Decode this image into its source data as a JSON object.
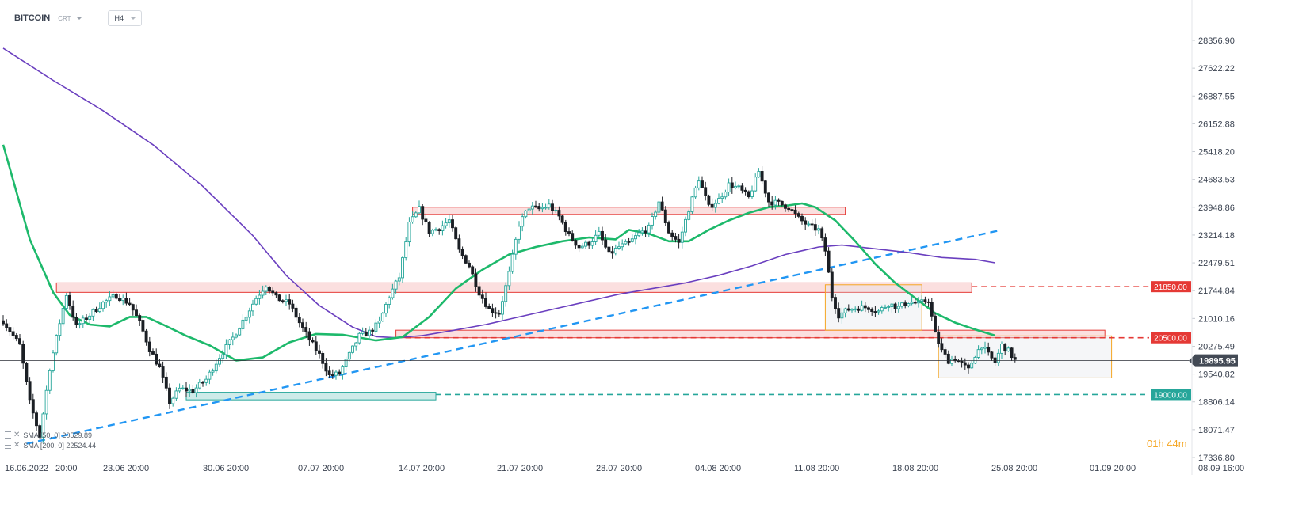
{
  "header": {
    "symbol": "BITCOIN",
    "type": "CRT",
    "timeframe": "H4"
  },
  "legend": {
    "sma50": "SMA [50, 0] 20529.89",
    "sma200": "SMA [200, 0] 22524.44"
  },
  "timer": {
    "hours": "01",
    "h": "h",
    "minutes": "44",
    "m": "m"
  },
  "colors": {
    "up": "#26a69a",
    "down": "#1b1f24",
    "sma50": "#1db96b",
    "sma200": "#6a3fbf",
    "resistance": "#e53935",
    "support": "#26a69a",
    "trendline": "#2196f3",
    "range_box": "#f5a623"
  },
  "chart_data": {
    "type": "candlestick",
    "instrument": "BITCOIN",
    "timeframe": "H4",
    "x_labels": [
      "16.06.2022",
      "20:00",
      "23.06  20:00",
      "30.06  20:00",
      "07.07  20:00",
      "14.07  20:00",
      "21.07  20:00",
      "28.07  20:00",
      "04.08  20:00",
      "11.08  20:00",
      "18.08  20:00",
      "25.08  20:00",
      "01.09  20:00",
      "08.09  16:00"
    ],
    "y_ticks": [
      "28356.90",
      "27622.22",
      "26887.55",
      "26152.88",
      "25418.20",
      "24683.53",
      "23948.86",
      "23214.18",
      "22479.51",
      "21744.84",
      "21010.16",
      "20275.49",
      "19540.82",
      "18806.14",
      "18071.47",
      "17336.80"
    ],
    "ylim": [
      17336.8,
      28356.9
    ],
    "current_price": "19895.95",
    "levels": [
      {
        "label": "21850.00",
        "value": 21850,
        "kind": "resistance"
      },
      {
        "label": "20500.00",
        "value": 20500,
        "kind": "resistance"
      },
      {
        "label": "19000.00",
        "value": 19000,
        "kind": "support"
      }
    ],
    "price_path": [
      [
        0,
        20950
      ],
      [
        5,
        20300
      ],
      [
        8,
        18800
      ],
      [
        11,
        17900
      ],
      [
        14,
        19700
      ],
      [
        17,
        20900
      ],
      [
        19,
        21650
      ],
      [
        22,
        20800
      ],
      [
        26,
        21100
      ],
      [
        30,
        21420
      ],
      [
        34,
        21620
      ],
      [
        38,
        21400
      ],
      [
        41,
        20900
      ],
      [
        44,
        20200
      ],
      [
        47,
        19700
      ],
      [
        50,
        18800
      ],
      [
        53,
        19150
      ],
      [
        57,
        19100
      ],
      [
        61,
        19400
      ],
      [
        65,
        20000
      ],
      [
        69,
        20500
      ],
      [
        73,
        21100
      ],
      [
        76,
        21550
      ],
      [
        79,
        21900
      ],
      [
        82,
        21550
      ],
      [
        86,
        21400
      ],
      [
        89,
        20900
      ],
      [
        92,
        20450
      ],
      [
        95,
        20050
      ],
      [
        98,
        19500
      ],
      [
        101,
        19550
      ],
      [
        104,
        20050
      ],
      [
        107,
        20550
      ],
      [
        110,
        20650
      ],
      [
        113,
        20900
      ],
      [
        116,
        21600
      ],
      [
        119,
        22100
      ],
      [
        122,
        23500
      ],
      [
        125,
        23900
      ],
      [
        128,
        23300
      ],
      [
        131,
        23400
      ],
      [
        134,
        23600
      ],
      [
        137,
        22800
      ],
      [
        140,
        22400
      ],
      [
        143,
        21700
      ],
      [
        146,
        21250
      ],
      [
        149,
        21150
      ],
      [
        152,
        22200
      ],
      [
        155,
        23500
      ],
      [
        158,
        23950
      ],
      [
        161,
        23900
      ],
      [
        164,
        24000
      ],
      [
        167,
        23700
      ],
      [
        170,
        23200
      ],
      [
        173,
        22900
      ],
      [
        176,
        23000
      ],
      [
        179,
        23250
      ],
      [
        182,
        22700
      ],
      [
        185,
        22900
      ],
      [
        188,
        23000
      ],
      [
        191,
        23250
      ],
      [
        194,
        23400
      ],
      [
        197,
        24100
      ],
      [
        200,
        23300
      ],
      [
        203,
        23000
      ],
      [
        206,
        23900
      ],
      [
        209,
        24700
      ],
      [
        212,
        23950
      ],
      [
        215,
        24150
      ],
      [
        218,
        24550
      ],
      [
        221,
        24450
      ],
      [
        224,
        24200
      ],
      [
        227,
        24900
      ],
      [
        230,
        24100
      ],
      [
        233,
        24050
      ],
      [
        236,
        23950
      ],
      [
        239,
        23650
      ],
      [
        242,
        23450
      ],
      [
        245,
        23350
      ],
      [
        247,
        22800
      ],
      [
        249,
        21600
      ],
      [
        251,
        21100
      ],
      [
        254,
        21250
      ],
      [
        257,
        21300
      ],
      [
        260,
        21300
      ],
      [
        263,
        21200
      ],
      [
        266,
        21400
      ],
      [
        269,
        21300
      ],
      [
        272,
        21450
      ],
      [
        275,
        21400
      ],
      [
        278,
        21500
      ],
      [
        280,
        20600
      ],
      [
        282,
        20150
      ],
      [
        284,
        19900
      ],
      [
        286,
        19950
      ],
      [
        288,
        19800
      ],
      [
        290,
        19650
      ],
      [
        292,
        20050
      ],
      [
        294,
        20300
      ],
      [
        296,
        20050
      ],
      [
        298,
        19850
      ],
      [
        300,
        20300
      ],
      [
        302,
        20150
      ],
      [
        304,
        19900
      ]
    ],
    "sma50_path": [
      [
        0,
        25600
      ],
      [
        8,
        23100
      ],
      [
        15,
        21700
      ],
      [
        20,
        21100
      ],
      [
        26,
        20850
      ],
      [
        32,
        20800
      ],
      [
        38,
        21050
      ],
      [
        43,
        21050
      ],
      [
        48,
        20850
      ],
      [
        55,
        20550
      ],
      [
        62,
        20300
      ],
      [
        70,
        19900
      ],
      [
        78,
        19980
      ],
      [
        86,
        20380
      ],
      [
        94,
        20600
      ],
      [
        102,
        20580
      ],
      [
        112,
        20430
      ],
      [
        120,
        20520
      ],
      [
        128,
        21050
      ],
      [
        136,
        21800
      ],
      [
        144,
        22300
      ],
      [
        152,
        22700
      ],
      [
        160,
        22900
      ],
      [
        168,
        23050
      ],
      [
        176,
        23150
      ],
      [
        184,
        23100
      ],
      [
        188,
        23350
      ],
      [
        194,
        23250
      ],
      [
        200,
        23050
      ],
      [
        206,
        23050
      ],
      [
        212,
        23350
      ],
      [
        218,
        23600
      ],
      [
        224,
        23800
      ],
      [
        230,
        23950
      ],
      [
        236,
        24000
      ],
      [
        240,
        24050
      ],
      [
        244,
        23950
      ],
      [
        250,
        23600
      ],
      [
        256,
        23050
      ],
      [
        262,
        22450
      ],
      [
        268,
        21950
      ],
      [
        274,
        21550
      ],
      [
        280,
        21150
      ],
      [
        286,
        20900
      ],
      [
        292,
        20720
      ],
      [
        298,
        20560
      ]
    ],
    "sma200_path": [
      [
        0,
        28150
      ],
      [
        15,
        27300
      ],
      [
        30,
        26500
      ],
      [
        45,
        25600
      ],
      [
        60,
        24500
      ],
      [
        75,
        23200
      ],
      [
        85,
        22150
      ],
      [
        95,
        21350
      ],
      [
        105,
        20780
      ],
      [
        112,
        20530
      ],
      [
        118,
        20500
      ],
      [
        126,
        20560
      ],
      [
        135,
        20690
      ],
      [
        145,
        20850
      ],
      [
        155,
        21050
      ],
      [
        165,
        21250
      ],
      [
        175,
        21450
      ],
      [
        185,
        21650
      ],
      [
        195,
        21800
      ],
      [
        205,
        21950
      ],
      [
        215,
        22150
      ],
      [
        225,
        22400
      ],
      [
        235,
        22700
      ],
      [
        245,
        22900
      ],
      [
        252,
        22950
      ],
      [
        262,
        22850
      ],
      [
        272,
        22750
      ],
      [
        282,
        22620
      ],
      [
        292,
        22570
      ],
      [
        298,
        22480
      ]
    ],
    "trendline": {
      "from": [
        7,
        17700
      ],
      "to": [
        300,
        23350
      ]
    },
    "zones": [
      {
        "kind": "resistance",
        "x": [
          123,
          253
        ],
        "y": [
          23760,
          23950
        ]
      },
      {
        "kind": "resistance",
        "x": [
          16,
          291
        ],
        "y": [
          21700,
          21950
        ]
      },
      {
        "kind": "resistance",
        "x": [
          118,
          331
        ],
        "y": [
          20500,
          20700
        ]
      },
      {
        "kind": "support",
        "x": [
          55,
          130
        ],
        "y": [
          18860,
          19060
        ]
      }
    ],
    "range_boxes": [
      {
        "x": [
          247,
          276
        ],
        "y": [
          20700,
          21900
        ]
      },
      {
        "x": [
          281,
          333
        ],
        "y": [
          19440,
          20550
        ]
      }
    ]
  }
}
